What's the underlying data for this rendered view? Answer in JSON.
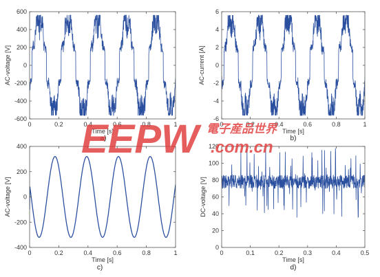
{
  "chart_data": [
    {
      "id": "a",
      "type": "line",
      "panel_label": "a)",
      "xlabel": "Time [s]",
      "ylabel": "AC-voltage [V]",
      "xlim": [
        0,
        1
      ],
      "ylim": [
        -600,
        600
      ],
      "xticks": [
        "0",
        "0.2",
        "0.4",
        "0.6",
        "0.8",
        "1"
      ],
      "yticks": [
        "-600",
        "-400",
        "-200",
        "0",
        "200",
        "400",
        "600"
      ],
      "waveform": "switched",
      "frequency_hz": 5,
      "peak": 520,
      "series_color": "#2a4f9e"
    },
    {
      "id": "b",
      "type": "line",
      "panel_label": "b)",
      "xlabel": "Time [s]",
      "ylabel": "AC-current [A]",
      "xlim": [
        0,
        1
      ],
      "ylim": [
        -6,
        6
      ],
      "xticks": [
        "0",
        "0.2",
        "0.4",
        "0.6",
        "0.8",
        "1"
      ],
      "yticks": [
        "-6",
        "-4",
        "-2",
        "0",
        "2",
        "4",
        "6"
      ],
      "waveform": "switched",
      "frequency_hz": 5,
      "peak": 5.2,
      "series_color": "#2a4f9e"
    },
    {
      "id": "c",
      "type": "line",
      "panel_label": "c)",
      "xlabel": "Time [s]",
      "ylabel": "AC-voltage [V]",
      "xlim": [
        0,
        1
      ],
      "ylim": [
        -400,
        400
      ],
      "xticks": [
        "0",
        "0.2",
        "0.4",
        "0.6",
        "0.8",
        "1"
      ],
      "yticks": [
        "-400",
        "-200",
        "0",
        "200",
        "400"
      ],
      "waveform": "sine",
      "frequency_hz": 4.6,
      "amplitude": 320,
      "start_value": -100,
      "series_color": "#2a4f9e"
    },
    {
      "id": "d",
      "type": "line",
      "panel_label": "d)",
      "xlabel": "Time [s]",
      "ylabel": "DC-voltage [V]",
      "xlim": [
        0,
        0.5
      ],
      "ylim": [
        0,
        120
      ],
      "xticks": [
        "0",
        "0.1",
        "0.2",
        "0.3",
        "0.4",
        "0.5"
      ],
      "yticks": [
        "0",
        "20",
        "40",
        "60",
        "80",
        "100",
        "120"
      ],
      "waveform": "noise",
      "mean": 78,
      "band": [
        70,
        85
      ],
      "spike_range": [
        35,
        120
      ],
      "series_color": "#2a4f9e"
    }
  ],
  "watermark": {
    "logo_text": "EEPW",
    "cn_text": "電子産品世界",
    "url_text": ".com.cn",
    "color": "#e03a3a"
  }
}
